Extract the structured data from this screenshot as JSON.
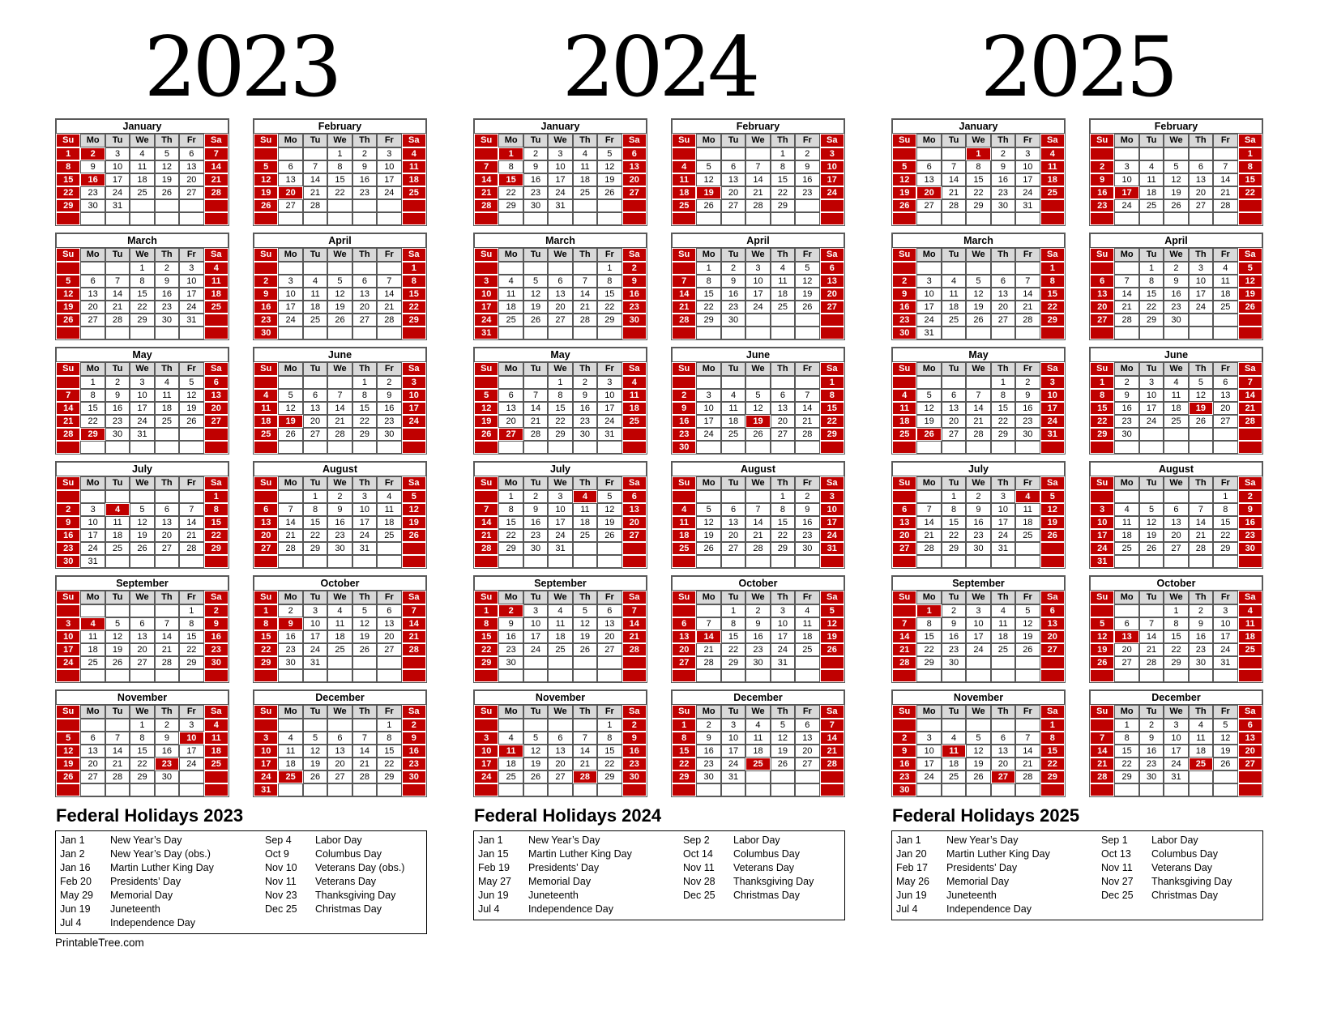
{
  "page": {
    "footer": "PrintableTree.com"
  },
  "colors": {
    "highlight_red": "#c00000",
    "weekday_header_gray": "#d9d9d9",
    "grid_border": "#595959",
    "text": "#000000"
  },
  "day_headers": [
    "Su",
    "Mo",
    "Tu",
    "We",
    "Th",
    "Fr",
    "Sa"
  ],
  "years": [
    {
      "year": "2023",
      "holidays_title": "Federal Holidays 2023",
      "months": [
        {
          "name": "January",
          "start": 0,
          "days": 31,
          "highlights": [
            2,
            16
          ]
        },
        {
          "name": "February",
          "start": 3,
          "days": 28,
          "highlights": [
            20
          ]
        },
        {
          "name": "March",
          "start": 3,
          "days": 31,
          "highlights": []
        },
        {
          "name": "April",
          "start": 6,
          "days": 30,
          "highlights": []
        },
        {
          "name": "May",
          "start": 1,
          "days": 31,
          "highlights": [
            29
          ]
        },
        {
          "name": "June",
          "start": 4,
          "days": 30,
          "highlights": [
            19
          ]
        },
        {
          "name": "July",
          "start": 6,
          "days": 31,
          "highlights": [
            4
          ]
        },
        {
          "name": "August",
          "start": 2,
          "days": 31,
          "highlights": []
        },
        {
          "name": "September",
          "start": 5,
          "days": 30,
          "highlights": [
            4
          ]
        },
        {
          "name": "October",
          "start": 0,
          "days": 31,
          "highlights": [
            9
          ]
        },
        {
          "name": "November",
          "start": 3,
          "days": 30,
          "highlights": [
            10,
            23
          ]
        },
        {
          "name": "December",
          "start": 5,
          "days": 31,
          "highlights": [
            25
          ]
        }
      ],
      "holidays_left": [
        {
          "date": "Jan 1",
          "name": "New Year’s Day"
        },
        {
          "date": "Jan 2",
          "name": "New Year’s Day (obs.)"
        },
        {
          "date": "Jan 16",
          "name": "Martin Luther King Day"
        },
        {
          "date": "Feb 20",
          "name": "Presidents’ Day"
        },
        {
          "date": "May 29",
          "name": "Memorial Day"
        },
        {
          "date": "Jun 19",
          "name": "Juneteenth"
        },
        {
          "date": "Jul 4",
          "name": "Independence Day"
        }
      ],
      "holidays_right": [
        {
          "date": "Sep 4",
          "name": "Labor Day"
        },
        {
          "date": "Oct 9",
          "name": "Columbus Day"
        },
        {
          "date": "Nov 10",
          "name": "Veterans Day (obs.)"
        },
        {
          "date": "Nov 11",
          "name": "Veterans Day"
        },
        {
          "date": "Nov 23",
          "name": "Thanksgiving Day"
        },
        {
          "date": "Dec 25",
          "name": "Christmas Day"
        }
      ]
    },
    {
      "year": "2024",
      "holidays_title": "Federal Holidays 2024",
      "months": [
        {
          "name": "January",
          "start": 1,
          "days": 31,
          "highlights": [
            1,
            15
          ]
        },
        {
          "name": "February",
          "start": 4,
          "days": 29,
          "highlights": [
            19
          ]
        },
        {
          "name": "March",
          "start": 5,
          "days": 31,
          "highlights": []
        },
        {
          "name": "April",
          "start": 1,
          "days": 30,
          "highlights": []
        },
        {
          "name": "May",
          "start": 3,
          "days": 31,
          "highlights": [
            27
          ]
        },
        {
          "name": "June",
          "start": 6,
          "days": 30,
          "highlights": [
            19
          ]
        },
        {
          "name": "July",
          "start": 1,
          "days": 31,
          "highlights": [
            4
          ]
        },
        {
          "name": "August",
          "start": 4,
          "days": 31,
          "highlights": []
        },
        {
          "name": "September",
          "start": 0,
          "days": 30,
          "highlights": [
            2
          ]
        },
        {
          "name": "October",
          "start": 2,
          "days": 31,
          "highlights": [
            14
          ]
        },
        {
          "name": "November",
          "start": 5,
          "days": 30,
          "highlights": [
            11,
            28
          ]
        },
        {
          "name": "December",
          "start": 0,
          "days": 31,
          "highlights": [
            25
          ]
        }
      ],
      "holidays_left": [
        {
          "date": "Jan 1",
          "name": "New Year’s Day"
        },
        {
          "date": "Jan 15",
          "name": "Martin Luther King Day"
        },
        {
          "date": "Feb 19",
          "name": "Presidents’ Day"
        },
        {
          "date": "May 27",
          "name": "Memorial Day"
        },
        {
          "date": "Jun 19",
          "name": "Juneteenth"
        },
        {
          "date": "Jul 4",
          "name": "Independence Day"
        }
      ],
      "holidays_right": [
        {
          "date": "Sep 2",
          "name": "Labor Day"
        },
        {
          "date": "Oct 14",
          "name": "Columbus Day"
        },
        {
          "date": "Nov 11",
          "name": "Veterans Day"
        },
        {
          "date": "Nov 28",
          "name": "Thanksgiving Day"
        },
        {
          "date": "Dec 25",
          "name": "Christmas Day"
        }
      ]
    },
    {
      "year": "2025",
      "holidays_title": "Federal Holidays 2025",
      "months": [
        {
          "name": "January",
          "start": 3,
          "days": 31,
          "highlights": [
            1,
            20
          ]
        },
        {
          "name": "February",
          "start": 6,
          "days": 28,
          "highlights": [
            17
          ]
        },
        {
          "name": "March",
          "start": 6,
          "days": 31,
          "highlights": []
        },
        {
          "name": "April",
          "start": 2,
          "days": 30,
          "highlights": []
        },
        {
          "name": "May",
          "start": 4,
          "days": 31,
          "highlights": [
            26
          ]
        },
        {
          "name": "June",
          "start": 0,
          "days": 30,
          "highlights": [
            19
          ]
        },
        {
          "name": "July",
          "start": 2,
          "days": 31,
          "highlights": [
            4
          ]
        },
        {
          "name": "August",
          "start": 5,
          "days": 31,
          "highlights": []
        },
        {
          "name": "September",
          "start": 1,
          "days": 30,
          "highlights": [
            1
          ]
        },
        {
          "name": "October",
          "start": 3,
          "days": 31,
          "highlights": [
            13
          ]
        },
        {
          "name": "November",
          "start": 6,
          "days": 30,
          "highlights": [
            11,
            27
          ]
        },
        {
          "name": "December",
          "start": 1,
          "days": 31,
          "highlights": [
            25
          ]
        }
      ],
      "holidays_left": [
        {
          "date": "Jan 1",
          "name": "New Year’s Day"
        },
        {
          "date": "Jan 20",
          "name": "Martin Luther King Day"
        },
        {
          "date": "Feb 17",
          "name": "Presidents’ Day"
        },
        {
          "date": "May 26",
          "name": "Memorial Day"
        },
        {
          "date": "Jun 19",
          "name": "Juneteenth"
        },
        {
          "date": "Jul 4",
          "name": "Independence Day"
        }
      ],
      "holidays_right": [
        {
          "date": "Sep 1",
          "name": "Labor Day"
        },
        {
          "date": "Oct 13",
          "name": "Columbus Day"
        },
        {
          "date": "Nov 11",
          "name": "Veterans Day"
        },
        {
          "date": "Nov 27",
          "name": "Thanksgiving Day"
        },
        {
          "date": "Dec 25",
          "name": "Christmas Day"
        }
      ]
    }
  ]
}
